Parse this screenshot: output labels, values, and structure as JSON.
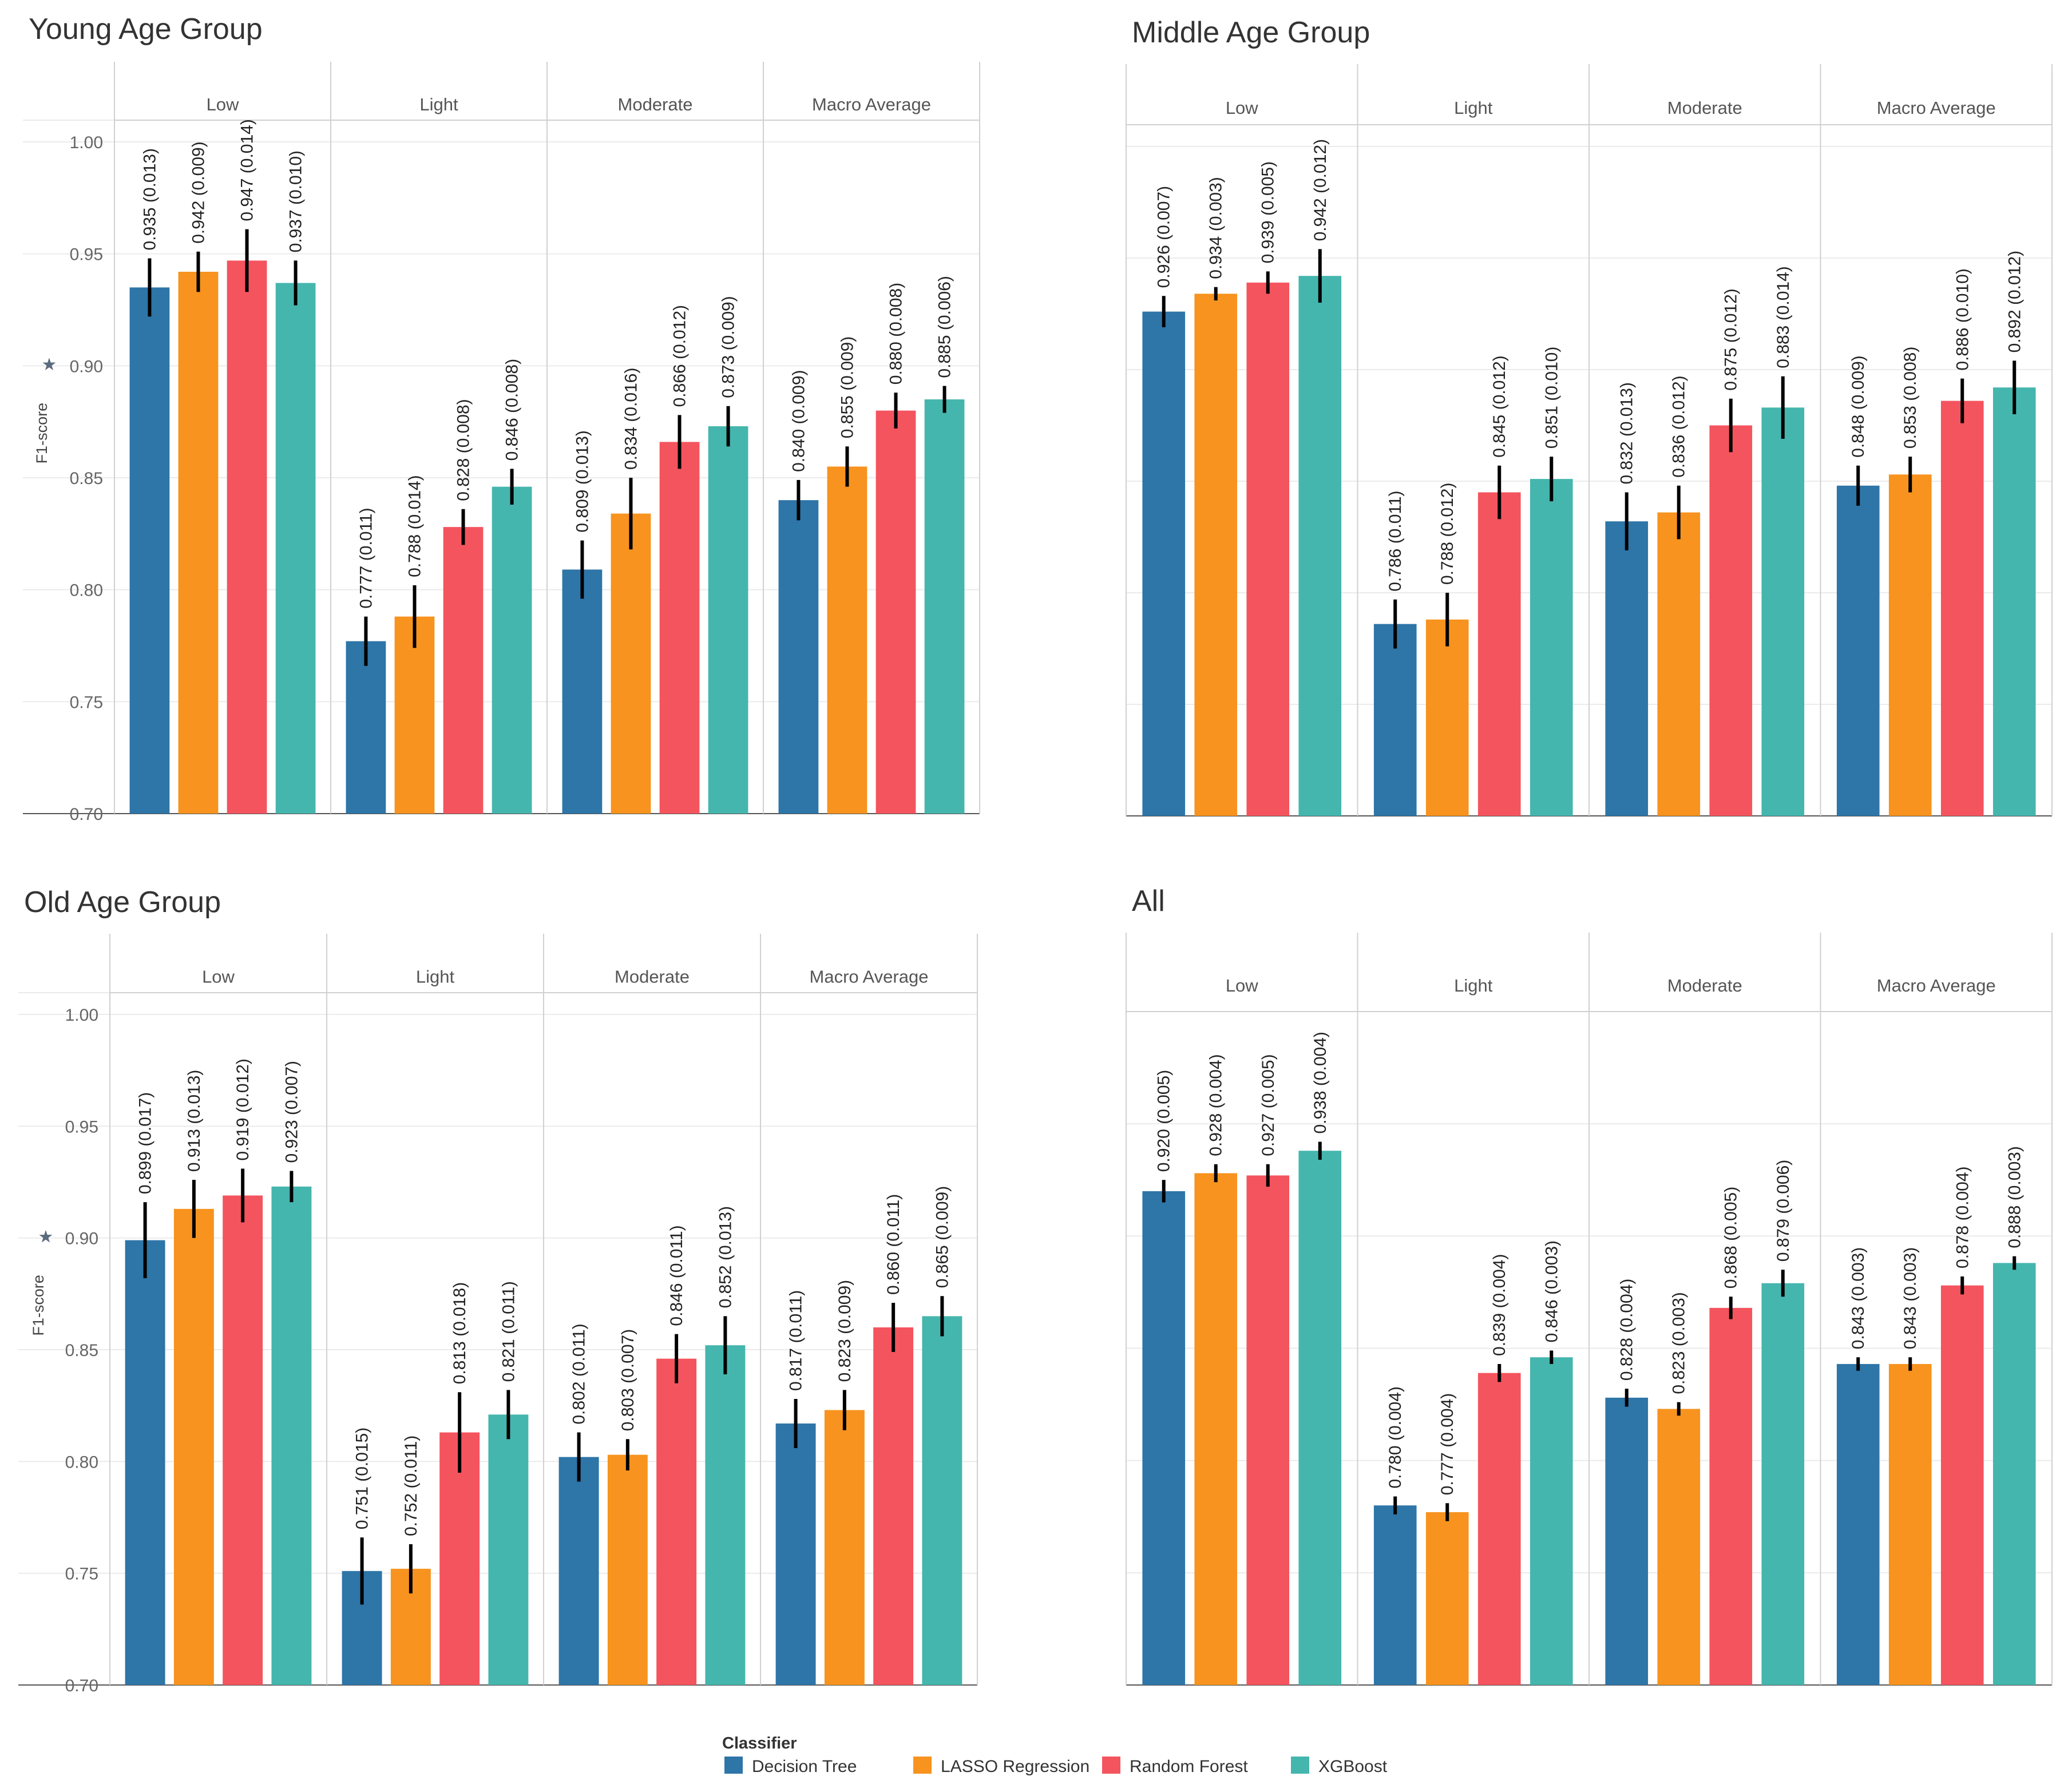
{
  "colors": {
    "decision_tree": "#2E75A8",
    "lasso": "#F7931E",
    "random_forest": "#F4545E",
    "xgboost": "#45B6AE",
    "grid": "#EBEBEB",
    "border": "#D0D0D0",
    "error_bar": "#000000"
  },
  "legend": {
    "title": "Classifier",
    "items": [
      {
        "label": "Decision Tree",
        "color": "#2E75A8"
      },
      {
        "label": "LASSO Regression",
        "color": "#F7931E"
      },
      {
        "label": "Random Forest",
        "color": "#F4545E"
      },
      {
        "label": "XGBoost",
        "color": "#45B6AE"
      }
    ]
  },
  "chart_data": [
    {
      "type": "bar",
      "title": "Young Age Group",
      "ylabel": "F1-score",
      "ylim": [
        0.7,
        1.0
      ],
      "yticks": [
        "1.00",
        "0.95",
        "0.90",
        "0.85",
        "0.80",
        "0.75",
        "0.70"
      ],
      "show_y_axis": true,
      "facets": [
        "Low",
        "Light",
        "Moderate",
        "Macro Average"
      ],
      "series": [
        {
          "name": "Decision Tree",
          "values": [
            0.935,
            0.777,
            0.809,
            0.84
          ],
          "errors": [
            0.013,
            0.011,
            0.013,
            0.009
          ],
          "labels": [
            "0.935 (0.013)",
            "0.777 (0.011)",
            "0.809 (0.013)",
            "0.840 (0.009)"
          ]
        },
        {
          "name": "LASSO Regression",
          "values": [
            0.942,
            0.788,
            0.834,
            0.855
          ],
          "errors": [
            0.009,
            0.014,
            0.016,
            0.009
          ],
          "labels": [
            "0.942 (0.009)",
            "0.788 (0.014)",
            "0.834 (0.016)",
            "0.855 (0.009)"
          ]
        },
        {
          "name": "Random Forest",
          "values": [
            0.947,
            0.828,
            0.866,
            0.88
          ],
          "errors": [
            0.014,
            0.008,
            0.012,
            0.008
          ],
          "labels": [
            "0.947 (0.014)",
            "0.828 (0.008)",
            "0.866 (0.012)",
            "0.880 (0.008)"
          ]
        },
        {
          "name": "XGBoost",
          "values": [
            0.937,
            0.846,
            0.873,
            0.885
          ],
          "errors": [
            0.01,
            0.008,
            0.009,
            0.006
          ],
          "labels": [
            "0.937 (0.010)",
            "0.846 (0.008)",
            "0.873 (0.009)",
            "0.885 (0.006)"
          ]
        }
      ]
    },
    {
      "type": "bar",
      "title": "Middle Age Group",
      "ylabel": "",
      "ylim": [
        0.7,
        1.0
      ],
      "yticks": [],
      "show_y_axis": false,
      "facets": [
        "Low",
        "Light",
        "Moderate",
        "Macro Average"
      ],
      "series": [
        {
          "name": "Decision Tree",
          "values": [
            0.926,
            0.786,
            0.832,
            0.848
          ],
          "errors": [
            0.007,
            0.011,
            0.013,
            0.009
          ],
          "labels": [
            "0.926 (0.007)",
            "0.786 (0.011)",
            "0.832 (0.013)",
            "0.848 (0.009)"
          ]
        },
        {
          "name": "LASSO Regression",
          "values": [
            0.934,
            0.788,
            0.836,
            0.853
          ],
          "errors": [
            0.003,
            0.012,
            0.012,
            0.008
          ],
          "labels": [
            "0.934 (0.003)",
            "0.788 (0.012)",
            "0.836 (0.012)",
            "0.853 (0.008)"
          ]
        },
        {
          "name": "Random Forest",
          "values": [
            0.939,
            0.845,
            0.875,
            0.886
          ],
          "errors": [
            0.005,
            0.012,
            0.012,
            0.01
          ],
          "labels": [
            "0.939 (0.005)",
            "0.845 (0.012)",
            "0.875 (0.012)",
            "0.886 (0.010)"
          ]
        },
        {
          "name": "XGBoost",
          "values": [
            0.942,
            0.851,
            0.883,
            0.892
          ],
          "errors": [
            0.012,
            0.01,
            0.014,
            0.012
          ],
          "labels": [
            "0.942 (0.012)",
            "0.851 (0.010)",
            "0.883 (0.014)",
            "0.892 (0.012)"
          ]
        }
      ]
    },
    {
      "type": "bar",
      "title": "Old Age Group",
      "ylabel": "F1-score",
      "ylim": [
        0.7,
        1.0
      ],
      "yticks": [
        "1.00",
        "0.95",
        "0.90",
        "0.85",
        "0.80",
        "0.75",
        "0.70"
      ],
      "show_y_axis": true,
      "facets": [
        "Low",
        "Light",
        "Moderate",
        "Macro Average"
      ],
      "series": [
        {
          "name": "Decision Tree",
          "values": [
            0.899,
            0.751,
            0.802,
            0.817
          ],
          "errors": [
            0.017,
            0.015,
            0.011,
            0.011
          ],
          "labels": [
            "0.899 (0.017)",
            "0.751 (0.015)",
            "0.802 (0.011)",
            "0.817 (0.011)"
          ]
        },
        {
          "name": "LASSO Regression",
          "values": [
            0.913,
            0.752,
            0.803,
            0.823
          ],
          "errors": [
            0.013,
            0.011,
            0.007,
            0.009
          ],
          "labels": [
            "0.913 (0.013)",
            "0.752 (0.011)",
            "0.803 (0.007)",
            "0.823 (0.009)"
          ]
        },
        {
          "name": "Random Forest",
          "values": [
            0.919,
            0.813,
            0.846,
            0.86
          ],
          "errors": [
            0.012,
            0.018,
            0.011,
            0.011
          ],
          "labels": [
            "0.919 (0.012)",
            "0.813 (0.018)",
            "0.846 (0.011)",
            "0.860 (0.011)"
          ]
        },
        {
          "name": "XGBoost",
          "values": [
            0.923,
            0.821,
            0.852,
            0.865
          ],
          "errors": [
            0.007,
            0.011,
            0.013,
            0.009
          ],
          "labels": [
            "0.923 (0.007)",
            "0.821 (0.011)",
            "0.852 (0.013)",
            "0.865 (0.009)"
          ]
        }
      ]
    },
    {
      "type": "bar",
      "title": "All",
      "ylabel": "",
      "ylim": [
        0.7,
        1.0
      ],
      "yticks": [],
      "show_y_axis": false,
      "facets": [
        "Low",
        "Light",
        "Moderate",
        "Macro Average"
      ],
      "series": [
        {
          "name": "Decision Tree",
          "values": [
            0.92,
            0.78,
            0.828,
            0.843
          ],
          "errors": [
            0.005,
            0.004,
            0.004,
            0.003
          ],
          "labels": [
            "0.920 (0.005)",
            "0.780 (0.004)",
            "0.828 (0.004)",
            "0.843 (0.003)"
          ]
        },
        {
          "name": "LASSO Regression",
          "values": [
            0.928,
            0.777,
            0.823,
            0.843
          ],
          "errors": [
            0.004,
            0.004,
            0.003,
            0.003
          ],
          "labels": [
            "0.928 (0.004)",
            "0.777 (0.004)",
            "0.823 (0.003)",
            "0.843 (0.003)"
          ]
        },
        {
          "name": "Random Forest",
          "values": [
            0.927,
            0.839,
            0.868,
            0.878
          ],
          "errors": [
            0.005,
            0.004,
            0.005,
            0.004
          ],
          "labels": [
            "0.927 (0.005)",
            "0.839 (0.004)",
            "0.868 (0.005)",
            "0.878 (0.004)"
          ]
        },
        {
          "name": "XGBoost",
          "values": [
            0.938,
            0.846,
            0.879,
            0.888
          ],
          "errors": [
            0.004,
            0.003,
            0.006,
            0.003
          ],
          "labels": [
            "0.938 (0.004)",
            "0.846 (0.003)",
            "0.879 (0.006)",
            "0.888 (0.003)"
          ]
        }
      ]
    }
  ]
}
